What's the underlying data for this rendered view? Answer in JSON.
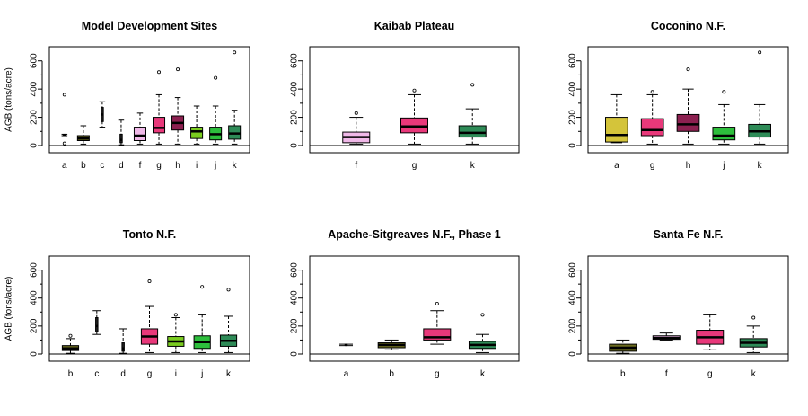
{
  "chart_data": [
    {
      "type": "boxplot",
      "title": "Model Development Sites",
      "ylabel": "AGB (tons/acre)",
      "ylim": [
        0,
        700
      ],
      "yticks": [
        0,
        200,
        400,
        600
      ],
      "categories": [
        "a",
        "b",
        "c",
        "d",
        "f",
        "g",
        "h",
        "i",
        "j",
        "k"
      ],
      "boxes": [
        {
          "label": "a",
          "color": "#1F1F1F",
          "min": 70,
          "q1": 72,
          "median": 75,
          "q3": 78,
          "max": 80,
          "outliers": [
            15,
            360
          ]
        },
        {
          "label": "b",
          "color": "#6B6B1F",
          "min": 10,
          "q1": 35,
          "median": 50,
          "q3": 70,
          "max": 140,
          "outliers": []
        },
        {
          "label": "c",
          "color": "#1F1F1F",
          "min": 130,
          "q1": 170,
          "median": 220,
          "q3": 270,
          "max": 310,
          "outliers": []
        },
        {
          "label": "d",
          "color": "#1F1F1F",
          "min": 5,
          "q1": 20,
          "median": 40,
          "q3": 80,
          "max": 180,
          "outliers": []
        },
        {
          "label": "f",
          "color": "#F0B8E8",
          "min": 10,
          "q1": 35,
          "median": 70,
          "q3": 130,
          "max": 230,
          "outliers": []
        },
        {
          "label": "g",
          "color": "#E8387A",
          "min": 10,
          "q1": 90,
          "median": 125,
          "q3": 200,
          "max": 360,
          "outliers": [
            520
          ]
        },
        {
          "label": "h",
          "color": "#8C2050",
          "min": 10,
          "q1": 110,
          "median": 160,
          "q3": 210,
          "max": 340,
          "outliers": [
            540
          ]
        },
        {
          "label": "i",
          "color": "#7ACC20",
          "min": 10,
          "q1": 50,
          "median": 100,
          "q3": 130,
          "max": 280,
          "outliers": []
        },
        {
          "label": "j",
          "color": "#2DBE3C",
          "min": 10,
          "q1": 40,
          "median": 80,
          "q3": 130,
          "max": 280,
          "outliers": [
            480
          ]
        },
        {
          "label": "k",
          "color": "#2E8B57",
          "min": 10,
          "q1": 45,
          "median": 85,
          "q3": 140,
          "max": 250,
          "outliers": [
            660
          ]
        }
      ]
    },
    {
      "type": "boxplot",
      "title": "Kaibab Plateau",
      "ylabel": "",
      "ylim": [
        0,
        700
      ],
      "yticks": [
        0,
        200,
        400,
        600
      ],
      "categories": [
        "f",
        "g",
        "k"
      ],
      "boxes": [
        {
          "label": "f",
          "color": "#F0B8E8",
          "min": 10,
          "q1": 20,
          "median": 60,
          "q3": 95,
          "max": 200,
          "outliers": [
            230
          ]
        },
        {
          "label": "g",
          "color": "#E8387A",
          "min": 10,
          "q1": 90,
          "median": 135,
          "q3": 195,
          "max": 360,
          "outliers": [
            390
          ]
        },
        {
          "label": "k",
          "color": "#2E8B57",
          "min": 10,
          "q1": 60,
          "median": 90,
          "q3": 140,
          "max": 260,
          "outliers": [
            430
          ]
        }
      ]
    },
    {
      "type": "boxplot",
      "title": "Coconino N.F.",
      "ylabel": "",
      "ylim": [
        0,
        700
      ],
      "yticks": [
        0,
        200,
        400,
        600
      ],
      "categories": [
        "a",
        "g",
        "h",
        "j",
        "k"
      ],
      "boxes": [
        {
          "label": "a",
          "color": "#D4C43A",
          "min": 20,
          "q1": 25,
          "median": 75,
          "q3": 200,
          "max": 360,
          "outliers": []
        },
        {
          "label": "g",
          "color": "#E8387A",
          "min": 10,
          "q1": 70,
          "median": 110,
          "q3": 190,
          "max": 360,
          "outliers": [
            380
          ]
        },
        {
          "label": "h",
          "color": "#8C2050",
          "min": 10,
          "q1": 100,
          "median": 150,
          "q3": 220,
          "max": 400,
          "outliers": [
            540
          ]
        },
        {
          "label": "j",
          "color": "#2DBE3C",
          "min": 10,
          "q1": 40,
          "median": 70,
          "q3": 130,
          "max": 290,
          "outliers": [
            380
          ]
        },
        {
          "label": "k",
          "color": "#2E8B57",
          "min": 10,
          "q1": 60,
          "median": 100,
          "q3": 150,
          "max": 290,
          "outliers": [
            660
          ]
        }
      ]
    },
    {
      "type": "boxplot",
      "title": "Tonto N.F.",
      "ylabel": "AGB (tons/acre)",
      "ylim": [
        0,
        700
      ],
      "yticks": [
        0,
        200,
        400,
        600
      ],
      "categories": [
        "b",
        "c",
        "d",
        "g",
        "i",
        "j",
        "k"
      ],
      "boxes": [
        {
          "label": "b",
          "color": "#6B6B1F",
          "min": 5,
          "q1": 25,
          "median": 40,
          "q3": 60,
          "max": 110,
          "outliers": [
            130
          ]
        },
        {
          "label": "c",
          "color": "#1F1F1F",
          "min": 140,
          "q1": 160,
          "median": 200,
          "q3": 260,
          "max": 310,
          "outliers": []
        },
        {
          "label": "d",
          "color": "#1F1F1F",
          "min": 5,
          "q1": 20,
          "median": 40,
          "q3": 80,
          "max": 180,
          "outliers": []
        },
        {
          "label": "g",
          "color": "#E8387A",
          "min": 10,
          "q1": 70,
          "median": 125,
          "q3": 180,
          "max": 340,
          "outliers": [
            520
          ]
        },
        {
          "label": "i",
          "color": "#7ACC20",
          "min": 10,
          "q1": 55,
          "median": 90,
          "q3": 125,
          "max": 260,
          "outliers": [
            280
          ]
        },
        {
          "label": "j",
          "color": "#2DBE3C",
          "min": 10,
          "q1": 40,
          "median": 85,
          "q3": 130,
          "max": 280,
          "outliers": [
            480
          ]
        },
        {
          "label": "k",
          "color": "#2E8B57",
          "min": 10,
          "q1": 55,
          "median": 95,
          "q3": 135,
          "max": 270,
          "outliers": [
            460
          ]
        }
      ]
    },
    {
      "type": "boxplot",
      "title": "Apache-Sitgreaves N.F., Phase 1",
      "ylabel": "",
      "ylim": [
        0,
        700
      ],
      "yticks": [
        0,
        200,
        400,
        600
      ],
      "categories": [
        "a",
        "b",
        "g",
        "k"
      ],
      "boxes": [
        {
          "label": "a",
          "color": "#1F1F1F",
          "min": 60,
          "q1": 62,
          "median": 65,
          "q3": 68,
          "max": 70,
          "outliers": []
        },
        {
          "label": "b",
          "color": "#6B6B1F",
          "min": 30,
          "q1": 45,
          "median": 65,
          "q3": 80,
          "max": 100,
          "outliers": []
        },
        {
          "label": "g",
          "color": "#E8387A",
          "min": 70,
          "q1": 100,
          "median": 120,
          "q3": 180,
          "max": 310,
          "outliers": [
            360
          ]
        },
        {
          "label": "k",
          "color": "#2E8B57",
          "min": 10,
          "q1": 40,
          "median": 65,
          "q3": 90,
          "max": 140,
          "outliers": [
            280
          ]
        }
      ]
    },
    {
      "type": "boxplot",
      "title": "Santa Fe N.F.",
      "ylabel": "",
      "ylim": [
        0,
        700
      ],
      "yticks": [
        0,
        200,
        400,
        600
      ],
      "categories": [
        "b",
        "f",
        "g",
        "k"
      ],
      "boxes": [
        {
          "label": "b",
          "color": "#6B6B1F",
          "min": 5,
          "q1": 20,
          "median": 45,
          "q3": 70,
          "max": 100,
          "outliers": []
        },
        {
          "label": "f",
          "color": "#F0B8E8",
          "min": 100,
          "q1": 105,
          "median": 115,
          "q3": 130,
          "max": 150,
          "outliers": []
        },
        {
          "label": "g",
          "color": "#E8387A",
          "min": 30,
          "q1": 70,
          "median": 120,
          "q3": 170,
          "max": 280,
          "outliers": []
        },
        {
          "label": "k",
          "color": "#2E8B57",
          "min": 10,
          "q1": 50,
          "median": 80,
          "q3": 110,
          "max": 200,
          "outliers": [
            260
          ]
        }
      ]
    }
  ]
}
